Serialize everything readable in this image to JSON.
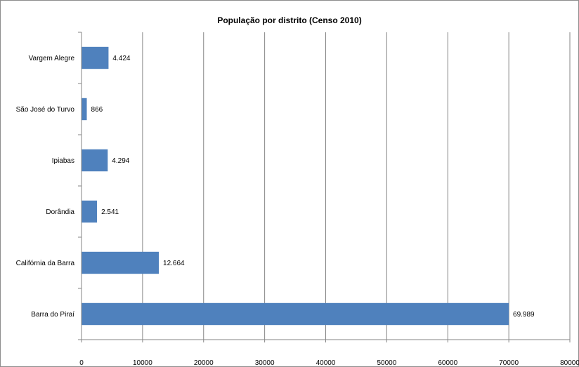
{
  "chart_data": {
    "type": "bar",
    "orientation": "horizontal",
    "title": "População por distrito (Censo 2010)",
    "xlabel": "",
    "ylabel": "",
    "xlim": [
      0,
      80000
    ],
    "x_ticks": [
      "0",
      "10000",
      "20000",
      "30000",
      "40000",
      "50000",
      "60000",
      "70000",
      "80000"
    ],
    "categories": [
      "Barra do Piraí",
      "Califórnia da Barra",
      "Dorândia",
      "Ipiabas",
      "São José do Turvo",
      "Vargem Alegre"
    ],
    "values": [
      69989,
      12664,
      2541,
      4294,
      866,
      4424
    ],
    "value_labels": [
      "69.989",
      "12.664",
      "2.541",
      "4.294",
      "866",
      "4.424"
    ],
    "bar_color": "#4f81bd",
    "grid": true,
    "legend": "none"
  }
}
